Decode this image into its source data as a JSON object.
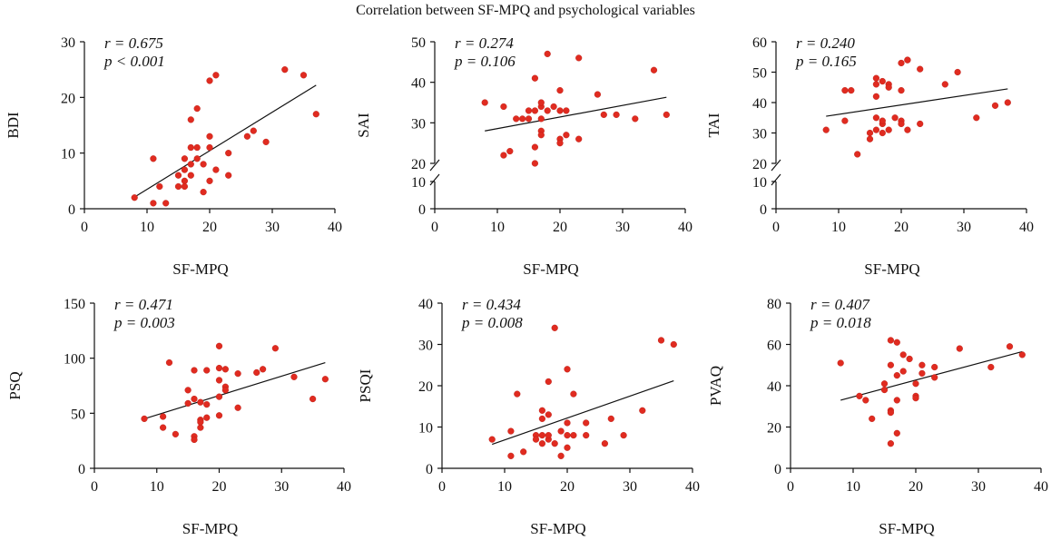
{
  "title": "Correlation between SF-MPQ and psychological variables",
  "colors": {
    "point": "#e02b20",
    "line": "#111111"
  },
  "chart_data": [
    {
      "type": "scatter",
      "id": "bdi",
      "ylabel": "BDI",
      "xlabel": "SF-MPQ",
      "stat_r": "r = 0.675",
      "stat_p": "p < 0.001",
      "xlim": [
        0,
        40
      ],
      "ylim": [
        0,
        30
      ],
      "xticks": [
        0,
        10,
        20,
        30,
        40
      ],
      "yticks": [
        0,
        10,
        20,
        30
      ],
      "fit": [
        [
          8,
          2.1
        ],
        [
          37,
          22.2
        ]
      ],
      "points": [
        [
          8,
          2
        ],
        [
          11,
          1
        ],
        [
          11,
          9
        ],
        [
          12,
          4
        ],
        [
          13,
          1
        ],
        [
          15,
          4
        ],
        [
          15,
          6
        ],
        [
          16,
          5
        ],
        [
          16,
          4
        ],
        [
          16,
          7
        ],
        [
          16,
          9
        ],
        [
          17,
          6
        ],
        [
          17,
          8
        ],
        [
          17,
          11
        ],
        [
          17,
          16
        ],
        [
          18,
          11
        ],
        [
          18,
          9
        ],
        [
          18,
          18
        ],
        [
          19,
          3
        ],
        [
          19,
          8
        ],
        [
          20,
          5
        ],
        [
          20,
          11
        ],
        [
          20,
          13
        ],
        [
          20,
          23
        ],
        [
          21,
          24
        ],
        [
          21,
          7
        ],
        [
          23,
          6
        ],
        [
          23,
          10
        ],
        [
          26,
          13
        ],
        [
          27,
          14
        ],
        [
          29,
          12
        ],
        [
          32,
          25
        ],
        [
          35,
          24
        ],
        [
          37,
          17
        ]
      ]
    },
    {
      "type": "scatter",
      "id": "sai",
      "ylabel": "SAI",
      "xlabel": "SF-MPQ",
      "stat_r": "r = 0.274",
      "stat_p": "p = 0.106",
      "xlim": [
        0,
        40
      ],
      "ylim_upper": [
        20,
        50
      ],
      "ylim_lower": [
        0,
        10
      ],
      "axis_break": true,
      "xticks": [
        0,
        10,
        20,
        30,
        40
      ],
      "yticks_upper": [
        20,
        30,
        40,
        50
      ],
      "yticks_lower": [
        0,
        10
      ],
      "fit": [
        [
          8,
          28
        ],
        [
          37,
          36.3
        ]
      ],
      "points": [
        [
          8,
          35
        ],
        [
          11,
          22
        ],
        [
          11,
          34
        ],
        [
          12,
          23
        ],
        [
          13,
          31
        ],
        [
          14,
          31
        ],
        [
          15,
          33
        ],
        [
          15,
          31
        ],
        [
          16,
          20
        ],
        [
          16,
          24
        ],
        [
          16,
          33
        ],
        [
          16,
          41
        ],
        [
          17,
          28
        ],
        [
          17,
          27
        ],
        [
          17,
          31
        ],
        [
          17,
          34
        ],
        [
          17,
          35
        ],
        [
          18,
          33
        ],
        [
          18,
          47
        ],
        [
          19,
          34
        ],
        [
          20,
          26
        ],
        [
          20,
          38
        ],
        [
          20,
          25
        ],
        [
          20,
          33
        ],
        [
          21,
          33
        ],
        [
          21,
          27
        ],
        [
          23,
          26
        ],
        [
          23,
          46
        ],
        [
          26,
          37
        ],
        [
          27,
          32
        ],
        [
          29,
          32
        ],
        [
          32,
          31
        ],
        [
          35,
          43
        ],
        [
          37,
          32
        ]
      ]
    },
    {
      "type": "scatter",
      "id": "tai",
      "ylabel": "TAI",
      "xlabel": "SF-MPQ",
      "stat_r": "r = 0.240",
      "stat_p": "p = 0.165",
      "xlim": [
        0,
        40
      ],
      "ylim_upper": [
        20,
        60
      ],
      "ylim_lower": [
        0,
        10
      ],
      "axis_break": true,
      "xticks": [
        0,
        10,
        20,
        30,
        40
      ],
      "yticks_upper": [
        20,
        30,
        40,
        50,
        60
      ],
      "yticks_lower": [
        0,
        10
      ],
      "fit": [
        [
          8,
          35.5
        ],
        [
          37,
          44.5
        ]
      ],
      "points": [
        [
          8,
          31
        ],
        [
          11,
          44
        ],
        [
          11,
          34
        ],
        [
          12,
          44
        ],
        [
          13,
          23
        ],
        [
          15,
          30
        ],
        [
          15,
          28
        ],
        [
          16,
          48
        ],
        [
          16,
          42
        ],
        [
          16,
          35
        ],
        [
          16,
          46
        ],
        [
          16,
          31
        ],
        [
          17,
          33
        ],
        [
          17,
          47
        ],
        [
          17,
          30
        ],
        [
          17,
          34
        ],
        [
          18,
          31
        ],
        [
          18,
          46
        ],
        [
          18,
          45
        ],
        [
          19,
          35
        ],
        [
          20,
          34
        ],
        [
          20,
          53
        ],
        [
          20,
          44
        ],
        [
          20,
          33
        ],
        [
          21,
          54
        ],
        [
          21,
          54
        ],
        [
          21,
          31
        ],
        [
          23,
          51
        ],
        [
          23,
          33
        ],
        [
          27,
          46
        ],
        [
          29,
          50
        ],
        [
          32,
          35
        ],
        [
          35,
          39
        ],
        [
          37,
          40
        ]
      ]
    },
    {
      "type": "scatter",
      "id": "psq",
      "ylabel": "PSQ",
      "xlabel": "SF-MPQ",
      "stat_r": "r = 0.471",
      "stat_p": "p = 0.003",
      "xlim": [
        0,
        40
      ],
      "ylim": [
        0,
        150
      ],
      "xticks": [
        0,
        10,
        20,
        30,
        40
      ],
      "yticks": [
        0,
        50,
        100,
        150
      ],
      "fit": [
        [
          8,
          45
        ],
        [
          37,
          96
        ]
      ],
      "points": [
        [
          8,
          45
        ],
        [
          11,
          47
        ],
        [
          11,
          37
        ],
        [
          12,
          96
        ],
        [
          13,
          31
        ],
        [
          15,
          71
        ],
        [
          15,
          59
        ],
        [
          16,
          89
        ],
        [
          16,
          63
        ],
        [
          16,
          29
        ],
        [
          16,
          26
        ],
        [
          17,
          44
        ],
        [
          17,
          60
        ],
        [
          17,
          37
        ],
        [
          17,
          42
        ],
        [
          18,
          89
        ],
        [
          18,
          58
        ],
        [
          18,
          46
        ],
        [
          20,
          111
        ],
        [
          20,
          91
        ],
        [
          20,
          80
        ],
        [
          20,
          65
        ],
        [
          20,
          48
        ],
        [
          21,
          90
        ],
        [
          21,
          74
        ],
        [
          21,
          71
        ],
        [
          23,
          86
        ],
        [
          23,
          55
        ],
        [
          26,
          87
        ],
        [
          27,
          90
        ],
        [
          29,
          109
        ],
        [
          32,
          83
        ],
        [
          35,
          63
        ],
        [
          37,
          81
        ]
      ]
    },
    {
      "type": "scatter",
      "id": "psqi",
      "ylabel": "PSQI",
      "xlabel": "SF-MPQ",
      "stat_r": "r = 0.434",
      "stat_p": "p = 0.008",
      "xlim": [
        0,
        40
      ],
      "ylim": [
        0,
        40
      ],
      "xticks": [
        0,
        10,
        20,
        30,
        40
      ],
      "yticks": [
        0,
        10,
        20,
        30,
        40
      ],
      "fit": [
        [
          8,
          5.8
        ],
        [
          37,
          21.2
        ]
      ],
      "points": [
        [
          8,
          7
        ],
        [
          11,
          9
        ],
        [
          11,
          3
        ],
        [
          12,
          18
        ],
        [
          13,
          4
        ],
        [
          15,
          8
        ],
        [
          15,
          7
        ],
        [
          16,
          14
        ],
        [
          16,
          12
        ],
        [
          16,
          6
        ],
        [
          16,
          8
        ],
        [
          17,
          7
        ],
        [
          17,
          13
        ],
        [
          17,
          21
        ],
        [
          17,
          8
        ],
        [
          18,
          34
        ],
        [
          18,
          6
        ],
        [
          19,
          9
        ],
        [
          19,
          3
        ],
        [
          20,
          24
        ],
        [
          20,
          11
        ],
        [
          20,
          8
        ],
        [
          20,
          5
        ],
        [
          21,
          18
        ],
        [
          21,
          8
        ],
        [
          23,
          11
        ],
        [
          23,
          8
        ],
        [
          26,
          6
        ],
        [
          27,
          12
        ],
        [
          29,
          8
        ],
        [
          32,
          14
        ],
        [
          35,
          31
        ],
        [
          37,
          30
        ]
      ]
    },
    {
      "type": "scatter",
      "id": "pvaq",
      "ylabel": "PVAQ",
      "xlabel": "SF-MPQ",
      "stat_r": "r = 0.407",
      "stat_p": "p = 0.018",
      "xlim": [
        0,
        40
      ],
      "ylim": [
        0,
        80
      ],
      "xticks": [
        0,
        10,
        20,
        30,
        40
      ],
      "yticks": [
        0,
        20,
        40,
        60,
        80
      ],
      "fit": [
        [
          8,
          33
        ],
        [
          37,
          56.5
        ]
      ],
      "points": [
        [
          8,
          51
        ],
        [
          11,
          35
        ],
        [
          12,
          33
        ],
        [
          13,
          24
        ],
        [
          15,
          41
        ],
        [
          15,
          38
        ],
        [
          16,
          62
        ],
        [
          16,
          50
        ],
        [
          16,
          28
        ],
        [
          16,
          27
        ],
        [
          16,
          12
        ],
        [
          17,
          61
        ],
        [
          17,
          45
        ],
        [
          17,
          33
        ],
        [
          17,
          17
        ],
        [
          18,
          55
        ],
        [
          18,
          47
        ],
        [
          19,
          53
        ],
        [
          20,
          41
        ],
        [
          20,
          35
        ],
        [
          20,
          34
        ],
        [
          21,
          50
        ],
        [
          21,
          46
        ],
        [
          23,
          49
        ],
        [
          23,
          44
        ],
        [
          27,
          58
        ],
        [
          32,
          49
        ],
        [
          35,
          59
        ],
        [
          37,
          55
        ]
      ]
    }
  ]
}
